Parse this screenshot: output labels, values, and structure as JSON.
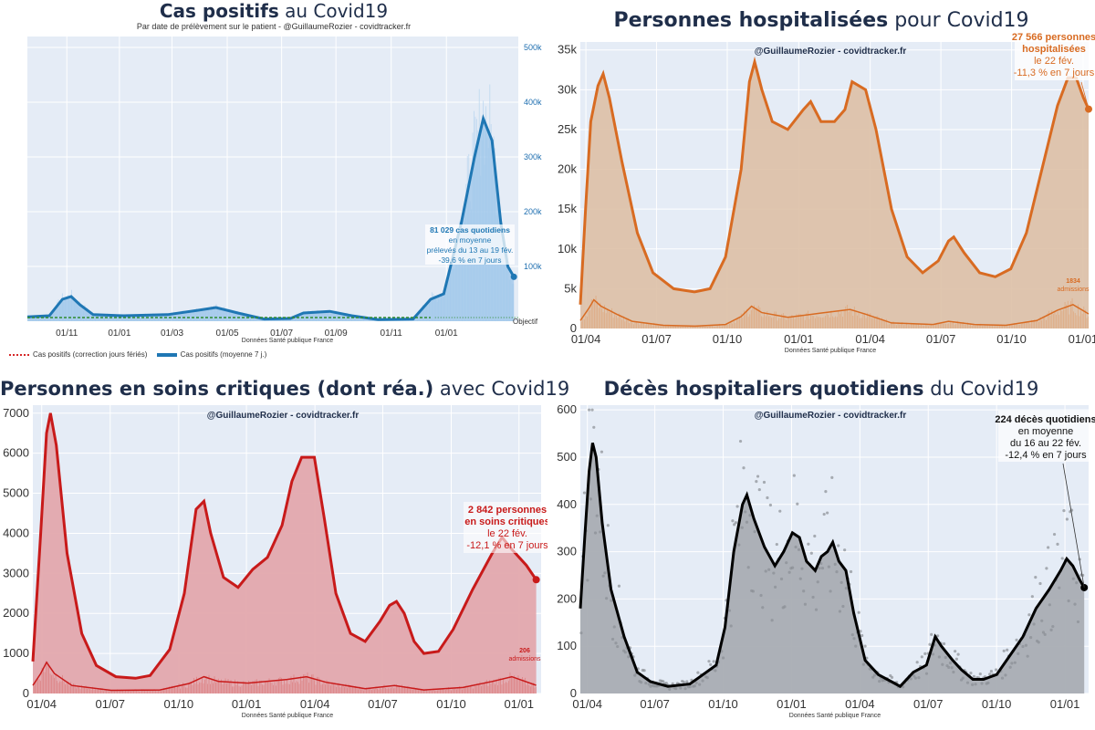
{
  "panels": {
    "cases": {
      "title_bold": "Cas positifs",
      "title_rest": " au Covid19",
      "subtitle": "Par date de prélèvement sur le patient - @GuillaumeRozier - covidtracker.fr",
      "source": "Données Santé publique France",
      "annotation": [
        "81 029 cas quotidiens",
        "en moyenne",
        "prélevés du 13 au 19 fév.",
        "-39,6 % en 7 jours"
      ],
      "objective_label": "Objectif",
      "legend": [
        "Cas positifs (correction jours fériés)",
        "Cas positifs (moyenne 7 j.)"
      ]
    },
    "hosp": {
      "title_bold": "Personnes hospitalisées",
      "title_rest": " pour Covid19",
      "watermark": "@GuillaumeRozier - covidtracker.fr",
      "source": "Données Santé publique France",
      "annotation": [
        "27 566 personnes",
        "hospitalisées",
        "le 22 fév.",
        "-11,3 % en 7 jours"
      ],
      "admissions_value": "1834",
      "admissions_label": "admissions"
    },
    "icu": {
      "title_bold": "Personnes en soins critiques (dont réa.)",
      "title_rest": " avec Covid19",
      "watermark": "@GuillaumeRozier - covidtracker.fr",
      "source": "Données Santé publique France",
      "annotation": [
        "2 842 personnes",
        "en soins critiques",
        "le 22 fév.",
        "-12,1 % en 7 jours"
      ],
      "admissions_value": "206",
      "admissions_label": "admissions"
    },
    "deaths": {
      "title_bold": "Décès hospitaliers quotidiens",
      "title_rest": " du Covid19",
      "watermark": "@GuillaumeRozier - covidtracker.fr",
      "source": "Données Santé publique France",
      "annotation": [
        "224 décès quotidiens",
        "en moyenne",
        "du 16 au 22 fév.",
        "-12,4 % en 7 jours"
      ]
    }
  },
  "colors": {
    "cases": "#1f77b4",
    "cases_fill": "#9cc6ea",
    "hosp": "#d86b22",
    "hosp_fill": "#ddc0a6",
    "icu": "#c81a1a",
    "icu_fill": "#e3a8ad",
    "deaths": "#000000",
    "deaths_fill": "#a9adb3",
    "plot_bg": "#e5ecf6",
    "objective": "#2e8b2e",
    "correction": "#d62728"
  },
  "chart_data": [
    {
      "id": "cases",
      "type": "area",
      "title": "Cas positifs au Covid19",
      "xticks": [
        "01/11",
        "01/01",
        "01/03",
        "01/05",
        "01/07",
        "01/09",
        "01/11",
        "01/01"
      ],
      "yticks": [
        "100k",
        "200k",
        "300k",
        "400k",
        "500k"
      ],
      "ylim": [
        0,
        520000
      ],
      "series": [
        {
          "name": "Cas positifs (moyenne 7 j.)",
          "points": [
            [
              0,
              8000
            ],
            [
              25,
              10000
            ],
            [
              40,
              40000
            ],
            [
              50,
              45000
            ],
            [
              60,
              30000
            ],
            [
              75,
              12000
            ],
            [
              110,
              10000
            ],
            [
              160,
              12000
            ],
            [
              195,
              20000
            ],
            [
              215,
              25000
            ],
            [
              240,
              15000
            ],
            [
              270,
              4000
            ],
            [
              300,
              5000
            ],
            [
              315,
              15000
            ],
            [
              345,
              18000
            ],
            [
              370,
              10000
            ],
            [
              400,
              3000
            ],
            [
              440,
              4000
            ],
            [
              460,
              40000
            ],
            [
              475,
              50000
            ],
            [
              495,
              180000
            ],
            [
              510,
              300000
            ],
            [
              520,
              370000
            ],
            [
              530,
              330000
            ],
            [
              540,
              180000
            ],
            [
              548,
              100000
            ],
            [
              555,
              81029
            ]
          ]
        }
      ],
      "xlim": [
        0,
        560
      ]
    },
    {
      "id": "hosp",
      "type": "area",
      "title": "Personnes hospitalisées pour Covid19",
      "xticks": [
        "01/04",
        "01/07",
        "01/10",
        "01/01",
        "01/04",
        "01/07",
        "01/10",
        "01/01"
      ],
      "yticks": [
        "0",
        "5k",
        "10k",
        "15k",
        "20k",
        "25k",
        "30k",
        "35k"
      ],
      "ylim": [
        0,
        36000
      ],
      "series": [
        {
          "name": "hospitalisées",
          "points": [
            [
              0,
              3000
            ],
            [
              5,
              15000
            ],
            [
              10,
              26000
            ],
            [
              17,
              30500
            ],
            [
              22,
              32000
            ],
            [
              28,
              29000
            ],
            [
              40,
              21000
            ],
            [
              55,
              12000
            ],
            [
              70,
              7000
            ],
            [
              90,
              5000
            ],
            [
              110,
              4600
            ],
            [
              125,
              5000
            ],
            [
              140,
              9000
            ],
            [
              155,
              20000
            ],
            [
              163,
              31000
            ],
            [
              168,
              33500
            ],
            [
              175,
              30000
            ],
            [
              185,
              26000
            ],
            [
              200,
              25000
            ],
            [
              215,
              27500
            ],
            [
              222,
              28500
            ],
            [
              232,
              26000
            ],
            [
              245,
              26000
            ],
            [
              255,
              27500
            ],
            [
              262,
              31000
            ],
            [
              275,
              30000
            ],
            [
              285,
              25000
            ],
            [
              300,
              15000
            ],
            [
              315,
              9000
            ],
            [
              330,
              7000
            ],
            [
              345,
              8500
            ],
            [
              355,
              11000
            ],
            [
              360,
              11500
            ],
            [
              370,
              9500
            ],
            [
              385,
              7000
            ],
            [
              400,
              6500
            ],
            [
              415,
              7500
            ],
            [
              430,
              12000
            ],
            [
              445,
              20000
            ],
            [
              460,
              28000
            ],
            [
              470,
              31500
            ],
            [
              478,
              31500
            ],
            [
              485,
              29000
            ],
            [
              490,
              27566
            ]
          ]
        },
        {
          "name": "admissions",
          "points": [
            [
              0,
              1000
            ],
            [
              8,
              2500
            ],
            [
              13,
              3600
            ],
            [
              20,
              2800
            ],
            [
              35,
              1800
            ],
            [
              50,
              900
            ],
            [
              80,
              400
            ],
            [
              110,
              300
            ],
            [
              140,
              500
            ],
            [
              155,
              1500
            ],
            [
              165,
              2800
            ],
            [
              175,
              2000
            ],
            [
              200,
              1400
            ],
            [
              230,
              1900
            ],
            [
              260,
              2400
            ],
            [
              275,
              1800
            ],
            [
              300,
              700
            ],
            [
              340,
              500
            ],
            [
              355,
              900
            ],
            [
              380,
              500
            ],
            [
              410,
              400
            ],
            [
              440,
              1000
            ],
            [
              460,
              2300
            ],
            [
              475,
              3000
            ],
            [
              490,
              1834
            ]
          ]
        }
      ],
      "xlim": [
        0,
        490
      ]
    },
    {
      "id": "icu",
      "type": "area",
      "title": "Personnes en soins critiques (dont réa.) avec Covid19",
      "xticks": [
        "01/04",
        "01/07",
        "01/10",
        "01/01",
        "01/04",
        "01/07",
        "01/10",
        "01/01"
      ],
      "yticks": [
        "0",
        "1000",
        "2000",
        "3000",
        "4000",
        "5000",
        "6000",
        "7000"
      ],
      "ylim": [
        0,
        7200
      ],
      "series": [
        {
          "name": "soins critiques",
          "points": [
            [
              0,
              800
            ],
            [
              8,
              4000
            ],
            [
              14,
              6500
            ],
            [
              18,
              7000
            ],
            [
              24,
              6200
            ],
            [
              35,
              3500
            ],
            [
              50,
              1500
            ],
            [
              65,
              700
            ],
            [
              85,
              420
            ],
            [
              105,
              380
            ],
            [
              120,
              450
            ],
            [
              140,
              1100
            ],
            [
              155,
              2500
            ],
            [
              167,
              4600
            ],
            [
              175,
              4800
            ],
            [
              182,
              4000
            ],
            [
              195,
              2900
            ],
            [
              210,
              2650
            ],
            [
              225,
              3100
            ],
            [
              240,
              3400
            ],
            [
              255,
              4200
            ],
            [
              265,
              5300
            ],
            [
              275,
              5900
            ],
            [
              288,
              5900
            ],
            [
              298,
              4400
            ],
            [
              310,
              2500
            ],
            [
              325,
              1500
            ],
            [
              340,
              1300
            ],
            [
              355,
              1800
            ],
            [
              365,
              2200
            ],
            [
              372,
              2300
            ],
            [
              380,
              2000
            ],
            [
              390,
              1300
            ],
            [
              400,
              1000
            ],
            [
              415,
              1050
            ],
            [
              430,
              1600
            ],
            [
              450,
              2600
            ],
            [
              470,
              3500
            ],
            [
              480,
              3900
            ],
            [
              490,
              3600
            ],
            [
              505,
              3200
            ],
            [
              515,
              2842
            ]
          ]
        },
        {
          "name": "admissions",
          "points": [
            [
              0,
              200
            ],
            [
              8,
              500
            ],
            [
              14,
              780
            ],
            [
              22,
              500
            ],
            [
              40,
              200
            ],
            [
              80,
              80
            ],
            [
              130,
              90
            ],
            [
              160,
              250
            ],
            [
              175,
              420
            ],
            [
              190,
              300
            ],
            [
              220,
              260
            ],
            [
              260,
              350
            ],
            [
              280,
              420
            ],
            [
              300,
              280
            ],
            [
              340,
              120
            ],
            [
              370,
              200
            ],
            [
              400,
              90
            ],
            [
              440,
              150
            ],
            [
              470,
              300
            ],
            [
              490,
              420
            ],
            [
              515,
              206
            ]
          ]
        }
      ],
      "xlim": [
        0,
        520
      ]
    },
    {
      "id": "deaths",
      "type": "line",
      "title": "Décès hospitaliers quotidiens du Covid19",
      "xticks": [
        "01/04",
        "01/07",
        "01/10",
        "01/01",
        "01/04",
        "01/07",
        "01/10",
        "01/01"
      ],
      "yticks": [
        "0",
        "100",
        "200",
        "300",
        "400",
        "500",
        "600"
      ],
      "ylim": [
        0,
        610
      ],
      "series": [
        {
          "name": "décès quotidiens (moyenne 7 j.)",
          "points": [
            [
              0,
              180
            ],
            [
              5,
              330
            ],
            [
              10,
              470
            ],
            [
              14,
              530
            ],
            [
              18,
              500
            ],
            [
              25,
              360
            ],
            [
              35,
              220
            ],
            [
              50,
              120
            ],
            [
              65,
              45
            ],
            [
              80,
              25
            ],
            [
              100,
              15
            ],
            [
              125,
              20
            ],
            [
              140,
              40
            ],
            [
              155,
              60
            ],
            [
              165,
              140
            ],
            [
              175,
              300
            ],
            [
              185,
              400
            ],
            [
              190,
              420
            ],
            [
              198,
              370
            ],
            [
              210,
              310
            ],
            [
              222,
              270
            ],
            [
              232,
              300
            ],
            [
              242,
              340
            ],
            [
              250,
              330
            ],
            [
              258,
              280
            ],
            [
              268,
              260
            ],
            [
              275,
              290
            ],
            [
              282,
              300
            ],
            [
              288,
              320
            ],
            [
              295,
              280
            ],
            [
              303,
              260
            ],
            [
              312,
              170
            ],
            [
              325,
              70
            ],
            [
              340,
              40
            ],
            [
              355,
              25
            ],
            [
              365,
              15
            ],
            [
              380,
              45
            ],
            [
              395,
              60
            ],
            [
              405,
              120
            ],
            [
              412,
              100
            ],
            [
              425,
              70
            ],
            [
              435,
              50
            ],
            [
              448,
              30
            ],
            [
              460,
              30
            ],
            [
              475,
              40
            ],
            [
              490,
              80
            ],
            [
              505,
              120
            ],
            [
              520,
              180
            ],
            [
              535,
              220
            ],
            [
              548,
              260
            ],
            [
              555,
              285
            ],
            [
              562,
              270
            ],
            [
              570,
              240
            ],
            [
              575,
              224
            ]
          ]
        }
      ],
      "xlim": [
        0,
        580
      ]
    }
  ]
}
